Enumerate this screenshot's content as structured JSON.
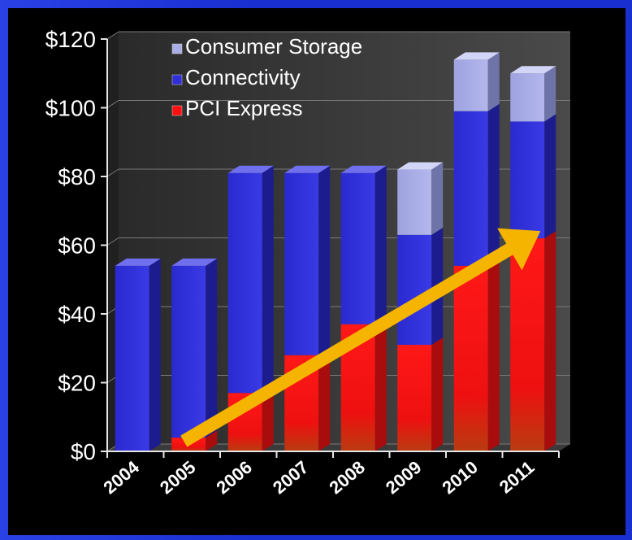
{
  "chart_data": {
    "type": "bar",
    "stacked": true,
    "three_d": true,
    "categories": [
      "2004",
      "2005",
      "2006",
      "2007",
      "2008",
      "2009",
      "2010",
      "2011"
    ],
    "series": [
      {
        "name": "PCI Express",
        "values": [
          0,
          4,
          17,
          28,
          37,
          31,
          54,
          62
        ],
        "color": "#ff1010"
      },
      {
        "name": "Connectivity",
        "values": [
          54,
          50,
          64,
          53,
          44,
          32,
          45,
          34
        ],
        "color": "#3030d8"
      },
      {
        "name": "Consumer Storage",
        "values": [
          0,
          0,
          0,
          0,
          0,
          19,
          15,
          14
        ],
        "color": "#a9aee6"
      }
    ],
    "legend_order": [
      "Consumer Storage",
      "Connectivity",
      "PCI Express"
    ],
    "yticks": [
      "$0",
      "$20",
      "$40",
      "$60",
      "$80",
      "$100",
      "$120"
    ],
    "ylim": [
      0,
      120
    ],
    "y_step": 20,
    "legend_position": "top-left",
    "grid": true,
    "annotation": {
      "type": "arrow",
      "color": "#f5b400",
      "from": {
        "category": "2005",
        "value": 2
      },
      "to": {
        "category": "2011",
        "value": 66
      }
    }
  }
}
